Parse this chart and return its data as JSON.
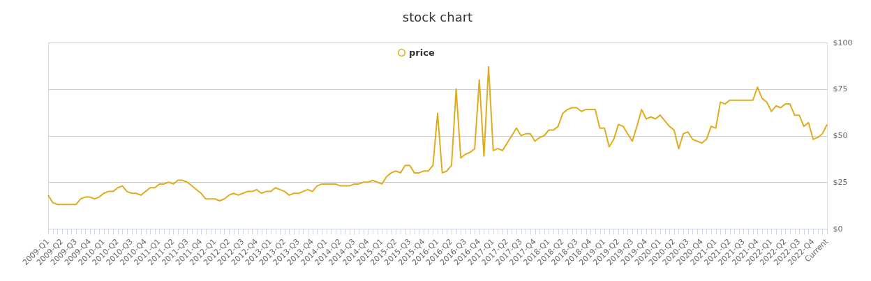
{
  "chart_data": {
    "type": "line",
    "title": "stock chart",
    "categories": [
      "2009-Q1",
      null,
      null,
      "2009-Q2",
      null,
      null,
      "2009-Q3",
      null,
      null,
      "2009-Q4",
      null,
      null,
      "2010-Q1",
      null,
      null,
      "2010-Q2",
      null,
      null,
      "2010-Q3",
      null,
      null,
      "2010-Q4",
      null,
      null,
      "2011-Q1",
      null,
      null,
      "2011-Q2",
      null,
      null,
      "2011-Q3",
      null,
      null,
      "2011-Q4",
      null,
      null,
      "2012-Q1",
      null,
      null,
      "2012-Q2",
      null,
      null,
      "2012-Q3",
      null,
      null,
      "2012-Q4",
      null,
      null,
      "2013-Q1",
      null,
      null,
      "2013-Q2",
      null,
      null,
      "2013-Q3",
      null,
      null,
      "2013-Q4",
      null,
      null,
      "2014-Q1",
      null,
      null,
      "2014-Q2",
      null,
      null,
      "2014-Q3",
      null,
      null,
      "2014-Q4",
      null,
      null,
      "2015-Q1",
      null,
      null,
      "2015-Q2",
      null,
      null,
      "2015-Q3",
      null,
      null,
      "2015-Q4",
      null,
      null,
      "2016-Q1",
      null,
      null,
      "2016-Q2",
      null,
      null,
      "2016-Q3",
      null,
      null,
      "2016-Q4",
      null,
      null,
      "2017-Q1",
      null,
      null,
      "2017-Q2",
      null,
      null,
      "2017-Q3",
      null,
      null,
      "2017-Q4",
      null,
      null,
      "2018-Q1",
      null,
      null,
      "2018-Q2",
      null,
      null,
      "2018-Q3",
      null,
      null,
      "2018-Q4",
      null,
      null,
      "2019-Q1",
      null,
      null,
      "2019-Q2",
      null,
      null,
      "2019-Q3",
      null,
      null,
      "2019-Q4",
      null,
      null,
      "2020-Q1",
      null,
      null,
      "2020-Q2",
      null,
      null,
      "2020-Q3",
      null,
      null,
      "2020-Q4",
      null,
      null,
      "2021-Q1",
      null,
      null,
      "2021-Q2",
      null,
      null,
      "2021-Q3",
      null,
      null,
      "2021-Q4",
      null,
      null,
      "2022-Q1",
      null,
      null,
      "2022-Q2",
      null,
      null,
      "2022-Q3",
      null,
      null,
      "2022-Q4",
      null,
      null,
      "Current"
    ],
    "series": [
      {
        "name": "price",
        "color": "#e0ac1e",
        "values": [
          18,
          14,
          13,
          13,
          13,
          13,
          13,
          16,
          17,
          17,
          16,
          17,
          19,
          20,
          20,
          22,
          23,
          20,
          19,
          19,
          18,
          20,
          22,
          22,
          24,
          24,
          25,
          24,
          26,
          26,
          25,
          23,
          21,
          19,
          16,
          16,
          16,
          15,
          16,
          18,
          19,
          18,
          19,
          20,
          20,
          21,
          19,
          20,
          20,
          22,
          21,
          20,
          18,
          19,
          19,
          20,
          21,
          20,
          23,
          24,
          24,
          24,
          24,
          23,
          23,
          23,
          24,
          24,
          25,
          25,
          26,
          25,
          24,
          28,
          30,
          31,
          30,
          34,
          34,
          30,
          30,
          31,
          31,
          34,
          62,
          30,
          31,
          34,
          75,
          38,
          40,
          41,
          43,
          80,
          39,
          87,
          42,
          43,
          42,
          46,
          50,
          54,
          50,
          51,
          51,
          47,
          49,
          50,
          53,
          53,
          55,
          62,
          64,
          65,
          65,
          63,
          64,
          64,
          64,
          54,
          54,
          44,
          48,
          56,
          55,
          51,
          47,
          55,
          64,
          59,
          60,
          59,
          61,
          58,
          55,
          53,
          43,
          51,
          52,
          48,
          47,
          46,
          48,
          55,
          54,
          68,
          67,
          69,
          69,
          69,
          69,
          69,
          69,
          76,
          70,
          68,
          63,
          66,
          65,
          67,
          67,
          61,
          61,
          55,
          57,
          48,
          49,
          51,
          56
        ]
      }
    ],
    "ylim": [
      0,
      100
    ],
    "yticks": [
      {
        "value": 0,
        "label": "$0"
      },
      {
        "value": 25,
        "label": "$25"
      },
      {
        "value": 50,
        "label": "$50"
      },
      {
        "value": 75,
        "label": "$75"
      },
      {
        "value": 100,
        "label": "$100"
      }
    ],
    "grid": "y",
    "legend": "top",
    "marker": "none",
    "line_style": "solid"
  }
}
